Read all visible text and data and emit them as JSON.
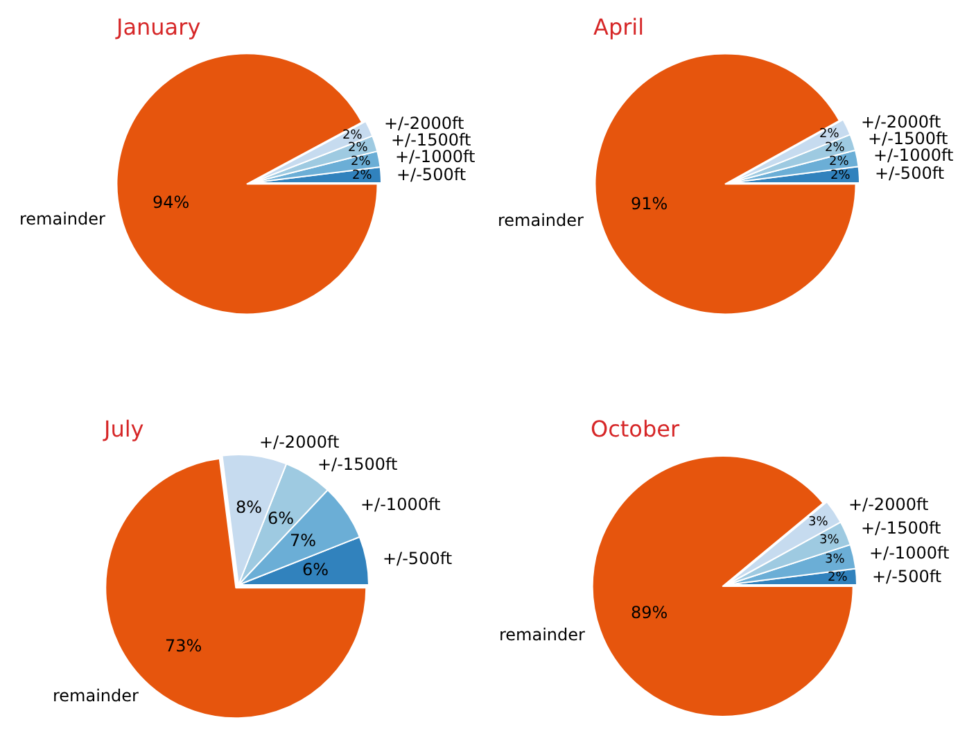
{
  "chart_data": [
    {
      "type": "pie",
      "title": "January",
      "categories": [
        "+/-500ft",
        "+/-1000ft",
        "+/-1500ft",
        "+/-2000ft",
        "remainder"
      ],
      "values": [
        2,
        2,
        2,
        2,
        94
      ],
      "value_labels": [
        "2%",
        "2%",
        "2%",
        "2%",
        "94%"
      ],
      "colors": [
        "#3182bd",
        "#6baed6",
        "#9ecae1",
        "#c6dbef",
        "#e6550d"
      ]
    },
    {
      "type": "pie",
      "title": "April",
      "categories": [
        "+/-500ft",
        "+/-1000ft",
        "+/-1500ft",
        "+/-2000ft",
        "remainder"
      ],
      "values": [
        2,
        2,
        2,
        2,
        91
      ],
      "value_labels": [
        "2%",
        "2%",
        "2%",
        "2%",
        "91%"
      ],
      "colors": [
        "#3182bd",
        "#6baed6",
        "#9ecae1",
        "#c6dbef",
        "#e6550d"
      ]
    },
    {
      "type": "pie",
      "title": "July",
      "categories": [
        "+/-500ft",
        "+/-1000ft",
        "+/-1500ft",
        "+/-2000ft",
        "remainder"
      ],
      "values": [
        6,
        7,
        6,
        8,
        73
      ],
      "value_labels": [
        "6%",
        "7%",
        "6%",
        "8%",
        "73%"
      ],
      "colors": [
        "#3182bd",
        "#6baed6",
        "#9ecae1",
        "#c6dbef",
        "#e6550d"
      ]
    },
    {
      "type": "pie",
      "title": "October",
      "categories": [
        "+/-500ft",
        "+/-1000ft",
        "+/-1500ft",
        "+/-2000ft",
        "remainder"
      ],
      "values": [
        2,
        3,
        3,
        3,
        89
      ],
      "value_labels": [
        "2%",
        "3%",
        "3%",
        "3%",
        "89%"
      ],
      "colors": [
        "#3182bd",
        "#6baed6",
        "#9ecae1",
        "#c6dbef",
        "#e6550d"
      ]
    }
  ]
}
